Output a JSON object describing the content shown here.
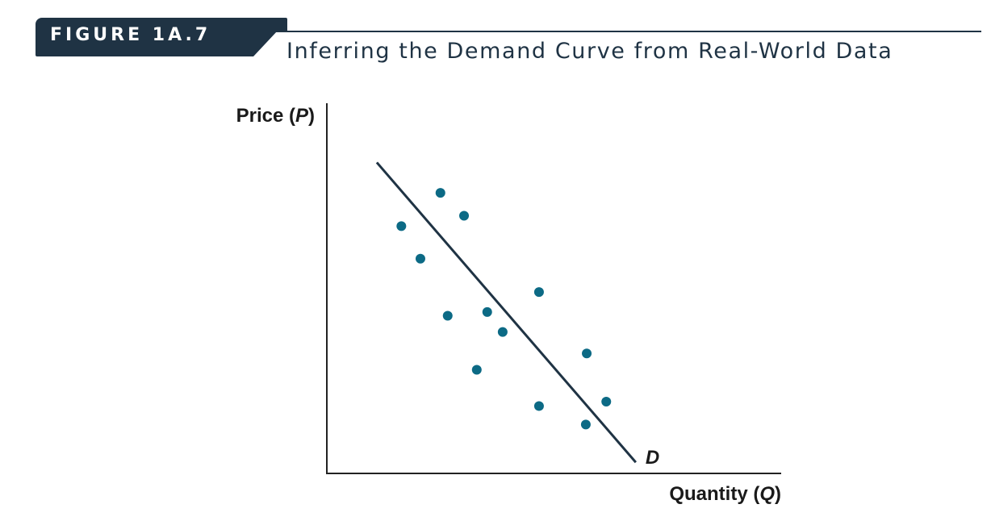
{
  "figure": {
    "label": "FIGURE 1A.7",
    "title": "Inferring the Demand Curve from Real-World Data"
  },
  "colors": {
    "header_band": "#1f3344",
    "point_color": "#0c6a85",
    "line_color": "#1f3344",
    "axis_color": "#222222"
  },
  "chart_data": {
    "type": "scatter",
    "title": "Inferring the Demand Curve from Real-World Data",
    "ylabel": {
      "text": "Price (",
      "var": "P",
      "close": ")"
    },
    "xlabel": {
      "text": "Quantity (",
      "var": "Q",
      "close": ")"
    },
    "xlim": [
      0,
      100
    ],
    "ylim": [
      0,
      100
    ],
    "grid": false,
    "ticks": false,
    "points": [
      {
        "x": 16.4,
        "y": 66.8
      },
      {
        "x": 20.6,
        "y": 58.0
      },
      {
        "x": 25.0,
        "y": 75.8
      },
      {
        "x": 26.6,
        "y": 42.6
      },
      {
        "x": 30.2,
        "y": 69.6
      },
      {
        "x": 33.0,
        "y": 28.0
      },
      {
        "x": 35.3,
        "y": 43.6
      },
      {
        "x": 38.7,
        "y": 38.2
      },
      {
        "x": 46.7,
        "y": 49.0
      },
      {
        "x": 46.7,
        "y": 18.2
      },
      {
        "x": 57.2,
        "y": 32.4
      },
      {
        "x": 57.0,
        "y": 13.2
      },
      {
        "x": 61.5,
        "y": 19.4
      }
    ],
    "line": {
      "name": "D",
      "from": {
        "x": 11.0,
        "y": 84.0
      },
      "to": {
        "x": 68.0,
        "y": 3.0
      }
    }
  }
}
